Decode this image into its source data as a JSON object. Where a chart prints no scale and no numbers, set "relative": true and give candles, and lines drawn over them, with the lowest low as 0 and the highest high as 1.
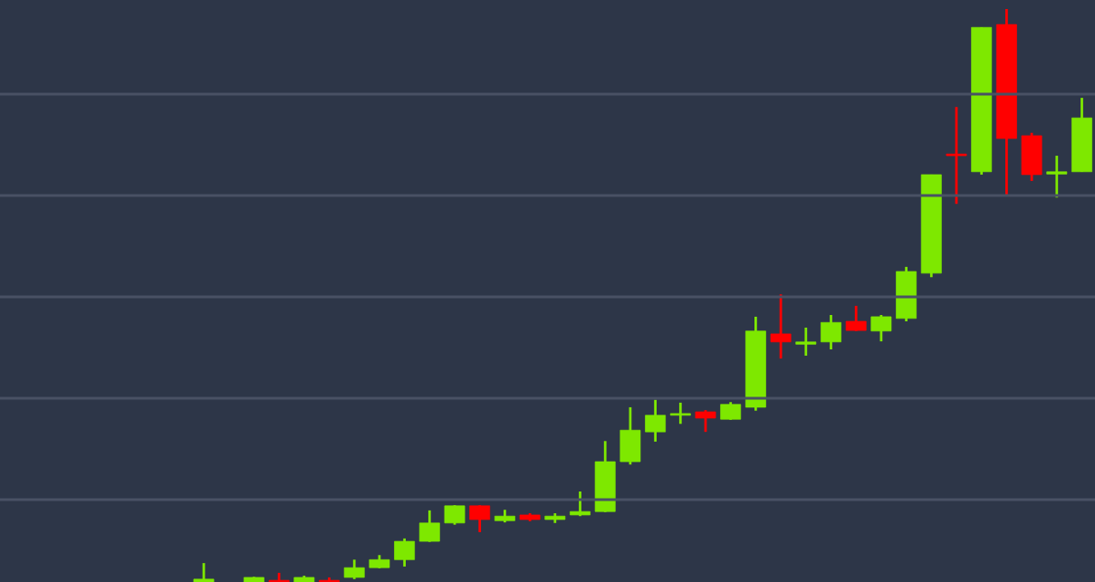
{
  "chart_data": {
    "type": "candlestick",
    "relative": true,
    "grid": "y",
    "categories": [
      null,
      null,
      null,
      null,
      null,
      null,
      null,
      null,
      null,
      null,
      null,
      null,
      null,
      null,
      null,
      null,
      null,
      null,
      null,
      null,
      null,
      null,
      null,
      null,
      null,
      null,
      null,
      null,
      null,
      null,
      null,
      null,
      null,
      null,
      null,
      null
    ],
    "ohlc": [
      [
        0,
        0.033,
        0,
        0.005
      ],
      null,
      [
        0,
        0.009,
        0,
        0.008
      ],
      [
        0.003,
        0.016,
        0,
        0
      ],
      [
        0,
        0.011,
        0,
        0.008
      ],
      [
        0.002,
        0.008,
        0,
        0
      ],
      [
        0.008,
        0.039,
        0.005,
        0.025
      ],
      [
        0.025,
        0.047,
        0.024,
        0.039
      ],
      [
        0.039,
        0.076,
        0.027,
        0.071
      ],
      [
        0.071,
        0.125,
        0.07,
        0.103
      ],
      [
        0.103,
        0.134,
        0.1,
        0.133
      ],
      [
        0.133,
        0.134,
        0.087,
        0.109
      ],
      [
        0.107,
        0.126,
        0.104,
        0.115
      ],
      [
        0.117,
        0.12,
        0.106,
        0.109
      ],
      [
        0.109,
        0.12,
        0.103,
        0.115
      ],
      [
        0.117,
        0.158,
        0.115,
        0.123
      ],
      [
        0.123,
        0.246,
        0.122,
        0.21
      ],
      [
        0.21,
        0.305,
        0.205,
        0.265
      ],
      [
        0.262,
        0.318,
        0.245,
        0.291
      ],
      [
        0.291,
        0.313,
        0.276,
        0.294
      ],
      [
        0.297,
        0.3,
        0.262,
        0.286
      ],
      [
        0.284,
        0.314,
        0.283,
        0.31
      ],
      [
        0.305,
        0.463,
        0.299,
        0.438
      ],
      [
        0.433,
        0.502,
        0.39,
        0.419
      ],
      [
        0.415,
        0.444,
        0.395,
        0.419
      ],
      [
        0.419,
        0.466,
        0.406,
        0.453
      ],
      [
        0.455,
        0.482,
        0.438,
        0.439
      ],
      [
        0.438,
        0.466,
        0.42,
        0.463
      ],
      [
        0.46,
        0.55,
        0.455,
        0.542
      ],
      [
        0.539,
        0.711,
        0.532,
        0.711
      ],
      [
        0.747,
        0.829,
        0.66,
        0.744
      ],
      [
        0.716,
        0.968,
        0.711,
        0.968
      ],
      [
        0.973,
        1,
        0.673,
        0.774
      ],
      [
        0.779,
        0.784,
        0.7,
        0.711
      ],
      [
        0.712,
        0.744,
        0.671,
        0.716
      ],
      [
        0.716,
        0.845,
        0.716,
        0.81
      ]
    ],
    "colors": [
      "#7ee800",
      null,
      "#7ee800",
      "#ff0000",
      "#7ee800",
      "#ff0000",
      "#7ee800",
      "#7ee800",
      "#7ee800",
      "#7ee800",
      "#7ee800",
      "#ff0000",
      "#7ee800",
      "#ff0000",
      "#7ee800",
      "#7ee800",
      "#7ee800",
      "#7ee800",
      "#7ee800",
      "#7ee800",
      "#ff0000",
      "#7ee800",
      "#7ee800",
      "#ff0000",
      "#7ee800",
      "#7ee800",
      "#ff0000",
      "#7ee800",
      "#7ee800",
      "#7ee800",
      "#ff0000",
      "#7ee800",
      "#ff0000",
      "#ff0000",
      "#7ee800",
      "#7ee800"
    ]
  }
}
